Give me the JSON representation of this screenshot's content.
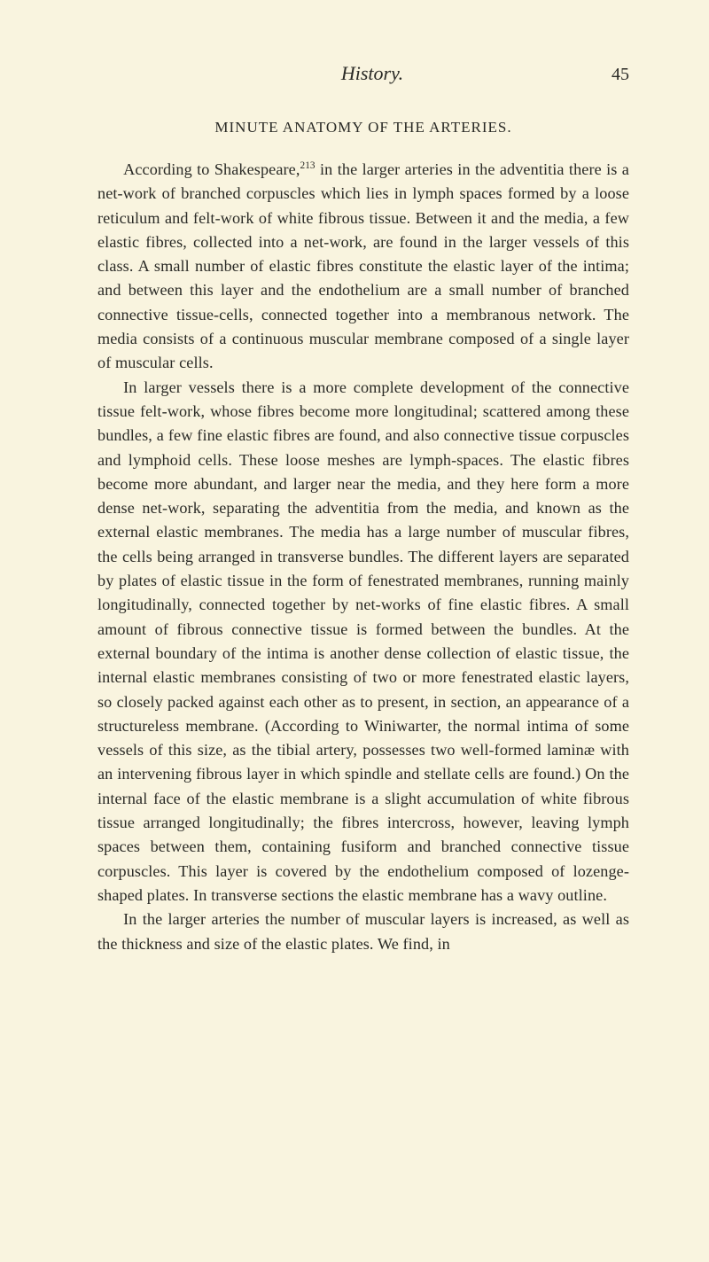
{
  "runningHead": {
    "title": "History.",
    "pageNumber": "45"
  },
  "sectionHeading": "MINUTE ANATOMY OF THE ARTERIES.",
  "para1_part1": "According to Shakespeare,",
  "para1_sup": "213",
  "para1_part2": " in the larger arteries in the adventitia there is a net-work of branched corpuscles which lies in lymph spaces formed by a loose reticulum and felt-work of white fibrous tissue. Between it and the media, a few elastic fibres, collected into a net-work, are found in the larger vessels of this class. A small number of elastic fibres constitute the elastic layer of the intima; and between this layer and the endothelium are a small number of branched connective tissue-cells, connected together into a membranous network. The media consists of a continuous muscular membrane composed of a single layer of muscular cells.",
  "para2": "In larger vessels there is a more complete development of the connective tissue felt-work, whose fibres become more longitudinal; scattered among these bundles, a few fine elastic fibres are found, and also connective tissue corpuscles and lymphoid cells. These loose meshes are lymph-spaces. The elastic fibres become more abundant, and larger near the media, and they here form a more dense net-work, separating the adventitia from the media, and known as the external elastic membranes. The media has a large number of muscular fibres, the cells being arranged in transverse bundles. The different layers are separated by plates of elastic tissue in the form of fenestrated membranes, running mainly longitudinally, connected together by net-works of fine elastic fibres. A small amount of fibrous connective tissue is formed between the bundles. At the external boundary of the intima is another dense collection of elastic tissue, the internal elastic membranes consisting of two or more fenestrated elastic layers, so closely packed against each other as to present, in section, an appearance of a structureless membrane. (According to Winiwarter, the normal intima of some vessels of this size, as the tibial artery, possesses two well-formed laminæ with an intervening fibrous layer in which spindle and stellate cells are found.) On the internal face of the elastic membrane is a slight accumulation of white fibrous tissue arranged longitudinally; the fibres intercross, however, leaving lymph spaces between them, containing fusiform and branched connective tissue corpuscles. This layer is covered by the endothelium composed of lozenge-shaped plates. In transverse sections the elastic membrane has a wavy outline.",
  "para3": "In the larger arteries the number of muscular layers is increased, as well as the thickness and size of the elastic plates. We find, in",
  "colors": {
    "background": "#f9f4df",
    "text": "#2a2a26"
  },
  "typography": {
    "bodyFontSize": 18.2,
    "lineHeight": 1.5,
    "headingFontSize": 17,
    "runningHeadFontSize": 22,
    "pageNumberFontSize": 20
  }
}
